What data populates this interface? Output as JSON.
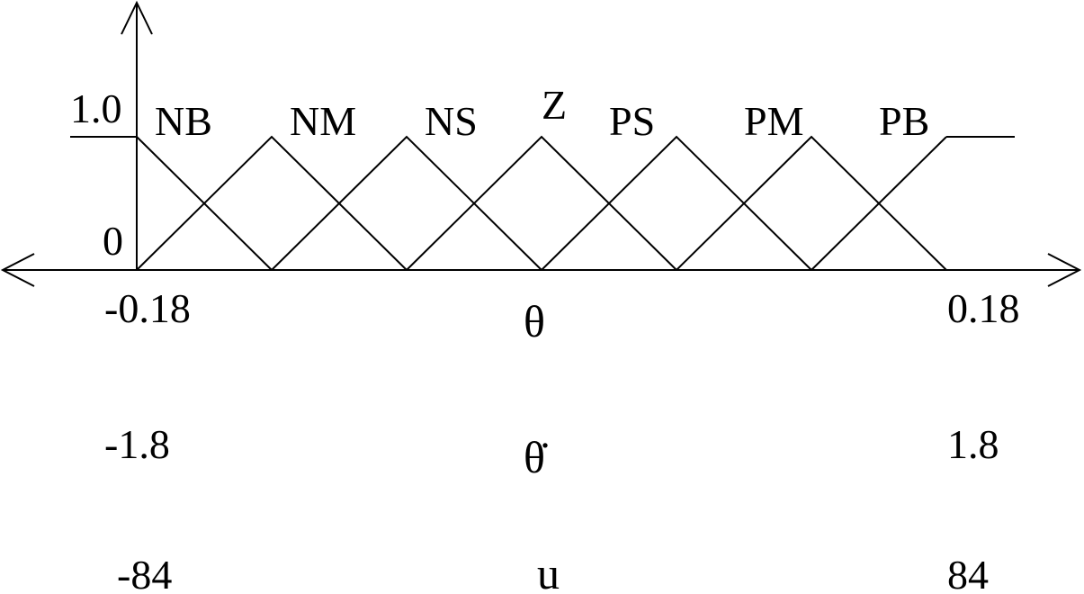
{
  "membership_axis": {
    "top_label": "1.0",
    "bottom_label": "0",
    "top_value": 1.0,
    "bottom_value": 0
  },
  "universe": {
    "min": -3,
    "max": 3
  },
  "fuzzy_sets": [
    {
      "name": "NB",
      "points": [
        [
          -3,
          1
        ],
        [
          -2,
          0
        ]
      ],
      "left_shoulder": true
    },
    {
      "name": "NM",
      "points": [
        [
          -3,
          0
        ],
        [
          -2,
          1
        ],
        [
          -1,
          0
        ]
      ]
    },
    {
      "name": "NS",
      "points": [
        [
          -2,
          0
        ],
        [
          -1,
          1
        ],
        [
          0,
          0
        ]
      ]
    },
    {
      "name": "Z",
      "points": [
        [
          -1,
          0
        ],
        [
          0,
          1
        ],
        [
          1,
          0
        ]
      ]
    },
    {
      "name": "PS",
      "points": [
        [
          0,
          0
        ],
        [
          1,
          1
        ],
        [
          2,
          0
        ]
      ]
    },
    {
      "name": "PM",
      "points": [
        [
          1,
          0
        ],
        [
          2,
          1
        ],
        [
          3,
          0
        ]
      ]
    },
    {
      "name": "PB",
      "points": [
        [
          2,
          0
        ],
        [
          3,
          1
        ]
      ],
      "right_shoulder": true
    }
  ],
  "variables": [
    {
      "symbol": "θ",
      "min_label": "-0.18",
      "max_label": "0.18"
    },
    {
      "symbol": "θ̇",
      "min_label": "-1.8",
      "max_label": "1.8"
    },
    {
      "symbol": "u",
      "min_label": "-84",
      "max_label": "84"
    }
  ]
}
